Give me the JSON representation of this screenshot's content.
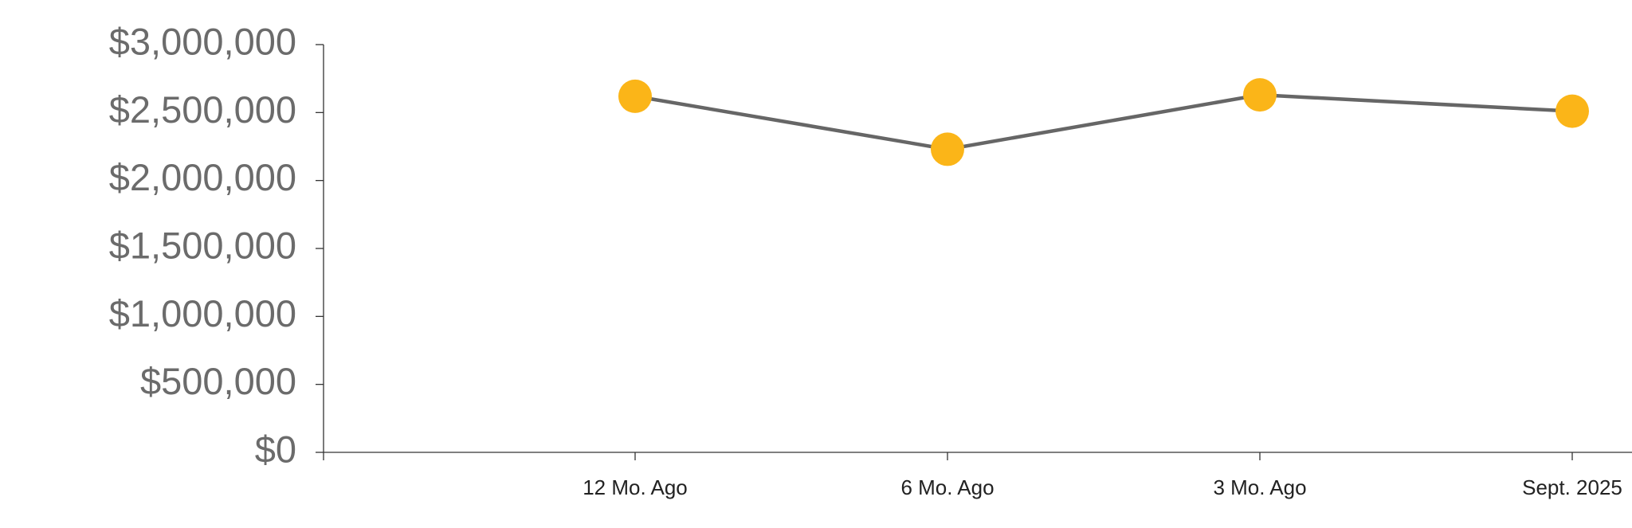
{
  "chart_data": {
    "type": "line",
    "categories": [
      "12 Mo. Ago",
      "6 Mo. Ago",
      "3 Mo. Ago",
      "Sept. 2025"
    ],
    "series": [
      {
        "color": "#fbb518",
        "values": [
          2620000,
          2230000,
          2630000,
          2510000
        ]
      }
    ],
    "line_color": "#666666",
    "ylim": [
      0,
      3000000
    ],
    "yticks": [
      {
        "value": 0,
        "label": "$0"
      },
      {
        "value": 500000,
        "label": "$500,000"
      },
      {
        "value": 1000000,
        "label": "$1,000,000"
      },
      {
        "value": 1500000,
        "label": "$1,500,000"
      },
      {
        "value": 2000000,
        "label": "$2,000,000"
      },
      {
        "value": 2500000,
        "label": "$2,500,000"
      },
      {
        "value": 3000000,
        "label": "$3,000,000"
      }
    ]
  }
}
